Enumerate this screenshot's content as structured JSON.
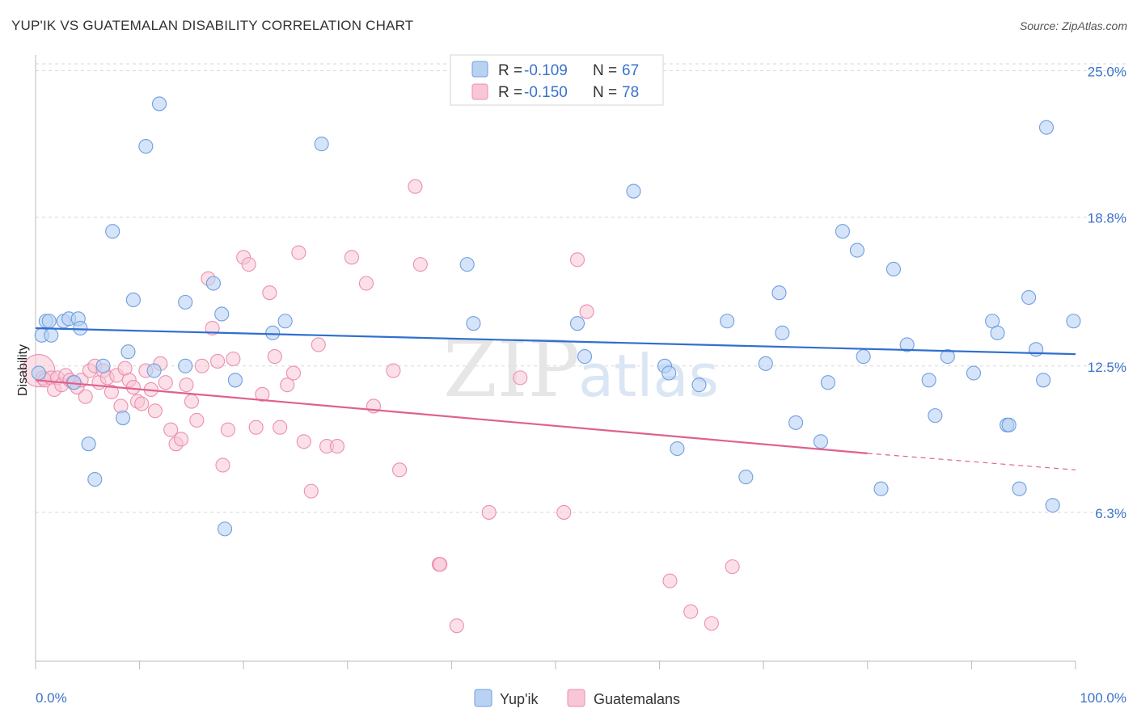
{
  "title": "YUP'IK VS GUATEMALAN DISABILITY CORRELATION CHART",
  "source": "Source: ZipAtlas.com",
  "watermark": {
    "zip": "ZIP",
    "atlas": "atlas"
  },
  "colors": {
    "yupik_fill": "#b9d2f3",
    "yupik_stroke": "#6f9fe0",
    "yupik_line": "#2f6fcf",
    "guat_fill": "#f8c6d6",
    "guat_stroke": "#ec8fae",
    "guat_line": "#e0608f",
    "tick_label": "#3a72c9",
    "grid": "#d8d8d8"
  },
  "legend": {
    "rows": [
      {
        "r_label": "R =",
        "r_value": "-0.109",
        "n_label": "N =",
        "n_value": "67"
      },
      {
        "r_label": "R =",
        "r_value": "-0.150",
        "n_label": "N =",
        "n_value": "78"
      }
    ]
  },
  "chart_data": {
    "type": "scatter",
    "title": "YUP'IK VS GUATEMALAN DISABILITY CORRELATION CHART",
    "xlabel": "",
    "ylabel": "Disability",
    "xlim": [
      0,
      100
    ],
    "ylim": [
      0,
      25.6
    ],
    "x_tick_labels": [
      "0.0%",
      "100.0%"
    ],
    "y_ticks": [
      6.3,
      12.5,
      18.8,
      25.0
    ],
    "y_tick_labels": [
      "6.3%",
      "12.5%",
      "18.8%",
      "25.0%"
    ],
    "grid": "horizontal dashed",
    "legend_position": "top-center",
    "series": [
      {
        "name": "Yup'ik",
        "color": "#6f9fe0",
        "trend": {
          "x": [
            0,
            100
          ],
          "y": [
            14.1,
            13.0
          ]
        },
        "points": [
          [
            0.3,
            12.2
          ],
          [
            0.6,
            13.8
          ],
          [
            1.0,
            14.4
          ],
          [
            1.3,
            14.4
          ],
          [
            1.5,
            13.8
          ],
          [
            2.7,
            14.4
          ],
          [
            3.2,
            14.5
          ],
          [
            3.7,
            11.8
          ],
          [
            4.1,
            14.5
          ],
          [
            4.3,
            14.1
          ],
          [
            5.1,
            9.2
          ],
          [
            5.7,
            7.7
          ],
          [
            6.5,
            12.5
          ],
          [
            7.4,
            18.2
          ],
          [
            8.4,
            10.3
          ],
          [
            8.9,
            13.1
          ],
          [
            9.4,
            15.3
          ],
          [
            10.6,
            21.8
          ],
          [
            11.4,
            12.3
          ],
          [
            11.9,
            23.6
          ],
          [
            14.4,
            15.2
          ],
          [
            14.4,
            12.5
          ],
          [
            17.1,
            16.0
          ],
          [
            17.9,
            14.7
          ],
          [
            18.2,
            5.6
          ],
          [
            19.2,
            11.9
          ],
          [
            22.8,
            13.9
          ],
          [
            24.0,
            14.4
          ],
          [
            27.5,
            21.9
          ],
          [
            41.5,
            16.8
          ],
          [
            42.1,
            14.3
          ],
          [
            52.1,
            14.3
          ],
          [
            52.8,
            12.9
          ],
          [
            57.5,
            19.9
          ],
          [
            60.5,
            12.5
          ],
          [
            60.9,
            12.2
          ],
          [
            61.7,
            9.0
          ],
          [
            63.8,
            11.7
          ],
          [
            66.5,
            14.4
          ],
          [
            68.3,
            7.8
          ],
          [
            70.2,
            12.6
          ],
          [
            71.5,
            15.6
          ],
          [
            71.8,
            13.9
          ],
          [
            73.1,
            10.1
          ],
          [
            75.5,
            9.3
          ],
          [
            76.2,
            11.8
          ],
          [
            77.6,
            18.2
          ],
          [
            79.0,
            17.4
          ],
          [
            79.6,
            12.9
          ],
          [
            81.3,
            7.3
          ],
          [
            82.5,
            16.6
          ],
          [
            83.8,
            13.4
          ],
          [
            85.9,
            11.9
          ],
          [
            86.5,
            10.4
          ],
          [
            87.7,
            12.9
          ],
          [
            90.2,
            12.2
          ],
          [
            92.0,
            14.4
          ],
          [
            92.5,
            13.9
          ],
          [
            93.4,
            10.0
          ],
          [
            93.6,
            10.0
          ],
          [
            94.6,
            7.3
          ],
          [
            95.5,
            15.4
          ],
          [
            96.2,
            13.2
          ],
          [
            96.9,
            11.9
          ],
          [
            97.2,
            22.6
          ],
          [
            97.8,
            6.6
          ],
          [
            99.8,
            14.4
          ]
        ]
      },
      {
        "name": "Guatemalans",
        "color": "#ec8fae",
        "trend": {
          "x": [
            0,
            80
          ],
          "y": [
            11.9,
            8.8
          ],
          "dash_to": {
            "x": 100,
            "y": 8.1
          }
        },
        "points": [
          [
            0.3,
            12.3
          ],
          [
            0.7,
            12.0
          ],
          [
            0.9,
            11.9
          ],
          [
            1.5,
            12.0
          ],
          [
            1.8,
            11.5
          ],
          [
            2.1,
            12.0
          ],
          [
            2.5,
            11.7
          ],
          [
            2.9,
            12.1
          ],
          [
            3.3,
            11.9
          ],
          [
            3.6,
            11.8
          ],
          [
            4.0,
            11.6
          ],
          [
            4.4,
            11.9
          ],
          [
            4.8,
            11.2
          ],
          [
            5.2,
            12.3
          ],
          [
            5.7,
            12.5
          ],
          [
            6.1,
            11.8
          ],
          [
            6.5,
            12.3
          ],
          [
            6.9,
            12.0
          ],
          [
            7.3,
            11.4
          ],
          [
            7.8,
            12.1
          ],
          [
            8.2,
            10.8
          ],
          [
            8.6,
            12.4
          ],
          [
            9.0,
            11.9
          ],
          [
            9.4,
            11.6
          ],
          [
            9.8,
            11.0
          ],
          [
            10.2,
            10.9
          ],
          [
            10.6,
            12.3
          ],
          [
            11.1,
            11.5
          ],
          [
            11.5,
            10.6
          ],
          [
            12.0,
            12.6
          ],
          [
            12.5,
            11.8
          ],
          [
            13.0,
            9.8
          ],
          [
            13.5,
            9.2
          ],
          [
            14.0,
            9.4
          ],
          [
            14.5,
            11.7
          ],
          [
            15.0,
            11.0
          ],
          [
            15.5,
            10.2
          ],
          [
            16.0,
            12.5
          ],
          [
            16.6,
            16.2
          ],
          [
            17.0,
            14.1
          ],
          [
            17.5,
            12.7
          ],
          [
            18.0,
            8.3
          ],
          [
            18.5,
            9.8
          ],
          [
            19.0,
            12.8
          ],
          [
            20.0,
            17.1
          ],
          [
            20.5,
            16.8
          ],
          [
            21.2,
            9.9
          ],
          [
            21.8,
            11.3
          ],
          [
            22.5,
            15.6
          ],
          [
            23.0,
            12.9
          ],
          [
            23.5,
            9.9
          ],
          [
            24.2,
            11.7
          ],
          [
            24.8,
            12.2
          ],
          [
            25.3,
            17.3
          ],
          [
            25.8,
            9.3
          ],
          [
            26.5,
            7.2
          ],
          [
            27.2,
            13.4
          ],
          [
            28.0,
            9.1
          ],
          [
            29.0,
            9.1
          ],
          [
            30.4,
            17.1
          ],
          [
            31.8,
            16.0
          ],
          [
            32.5,
            10.8
          ],
          [
            34.4,
            12.3
          ],
          [
            35.0,
            8.1
          ],
          [
            36.5,
            20.1
          ],
          [
            37.0,
            16.8
          ],
          [
            38.8,
            4.1
          ],
          [
            38.9,
            4.1
          ],
          [
            40.5,
            1.5
          ],
          [
            43.6,
            6.3
          ],
          [
            46.6,
            12.0
          ],
          [
            50.8,
            6.3
          ],
          [
            52.1,
            17.0
          ],
          [
            53.0,
            14.8
          ],
          [
            61.0,
            3.4
          ],
          [
            63.0,
            2.1
          ],
          [
            65.0,
            1.6
          ],
          [
            67.0,
            4.0
          ]
        ]
      }
    ]
  },
  "bottom_legend": {
    "items": [
      "Yup'ik",
      "Guatemalans"
    ]
  }
}
